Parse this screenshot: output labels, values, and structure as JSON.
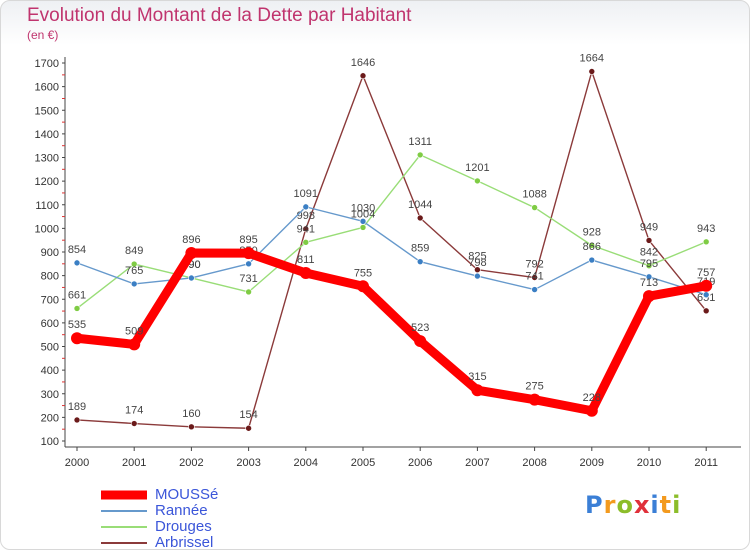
{
  "header": {
    "title": "Evolution du Montant de la Dette par Habitant",
    "subtitle": "(en €)"
  },
  "brand": {
    "letters": [
      "P",
      "r",
      "o",
      "x",
      "i",
      "t",
      "i"
    ],
    "colors": [
      "#3b7fd6",
      "#f39a1e",
      "#8cbd2a",
      "#e0303a",
      "#3b7fd6",
      "#f39a1e",
      "#8cbd2a"
    ]
  },
  "chart_data": {
    "type": "line",
    "title": "Evolution du Montant de la Dette par Habitant",
    "subtitle": "(en €)",
    "xlabel": "",
    "ylabel": "",
    "x": [
      "2000",
      "2001",
      "2002",
      "2003",
      "2004",
      "2005",
      "2006",
      "2007",
      "2008",
      "2009",
      "2010",
      "2011"
    ],
    "yticks": [
      100,
      200,
      300,
      400,
      500,
      600,
      700,
      800,
      900,
      1000,
      1100,
      1200,
      1300,
      1400,
      1500,
      1600,
      1700
    ],
    "ylim": [
      100,
      1700
    ],
    "grid": false,
    "legend": "bottom-left",
    "series": [
      {
        "name": "MOUSSé",
        "color": "#ff0000",
        "marker_color": "#ff0000",
        "values": [
          535,
          509,
          896,
          895,
          811,
          755,
          523,
          315,
          275,
          228,
          713,
          757
        ],
        "labels": [
          "535",
          "509",
          "896",
          "895",
          "811",
          "755",
          "523",
          "315",
          "275",
          "228",
          "713",
          "757"
        ]
      },
      {
        "name": "Rannée",
        "color": "#6699cc",
        "marker_color": "#3b7fc4",
        "values": [
          854,
          765,
          790,
          850,
          1091,
          1030,
          859,
          798,
          741,
          866,
          795,
          719
        ],
        "labels": [
          "854",
          "765",
          "790",
          "850",
          "1091",
          "1030",
          "859",
          "798",
          "741",
          "866",
          "795",
          "719"
        ]
      },
      {
        "name": "Drouges",
        "color": "#99dd77",
        "marker_color": "#7fcc44",
        "values": [
          661,
          849,
          790,
          731,
          941,
          1004,
          1311,
          1201,
          1088,
          928,
          842,
          943
        ],
        "labels": [
          "661",
          "849",
          "790",
          "731",
          "941",
          "1004",
          "1311",
          "1201",
          "1088",
          "928",
          "842",
          "943"
        ]
      },
      {
        "name": "Arbrissel",
        "color": "#8b3a3a",
        "marker_color": "#6b1a1a",
        "values": [
          189,
          174,
          160,
          154,
          998,
          1646,
          1044,
          825,
          792,
          1664,
          949,
          651
        ],
        "labels": [
          "189",
          "174",
          "160",
          "154",
          "998",
          "1646",
          "1044",
          "825",
          "792",
          "1664",
          "949",
          "651"
        ]
      }
    ]
  }
}
